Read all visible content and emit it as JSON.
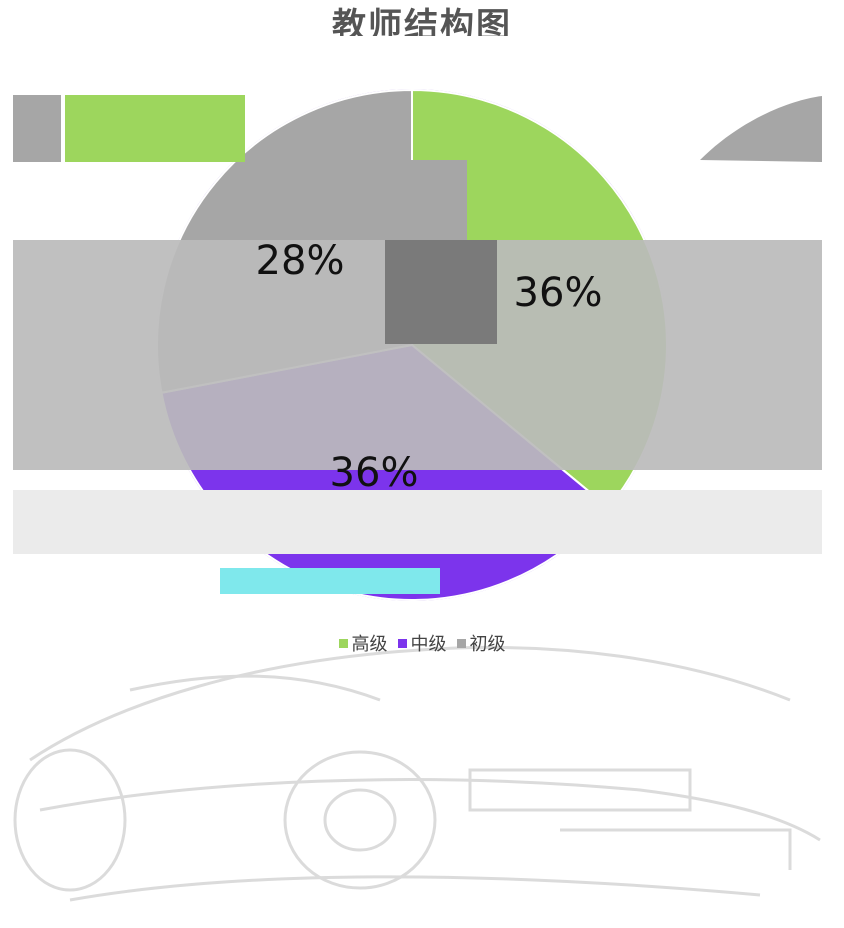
{
  "chart_data": {
    "type": "pie",
    "title": "教师结构图",
    "categories": [
      "高级",
      "中级",
      "初级"
    ],
    "values": [
      36,
      36,
      28
    ],
    "labels": [
      "36%",
      "36%",
      "28%"
    ],
    "colors": [
      "#9dd65d",
      "#7c34ec",
      "#a6a6a6"
    ],
    "legend_position": "bottom"
  }
}
